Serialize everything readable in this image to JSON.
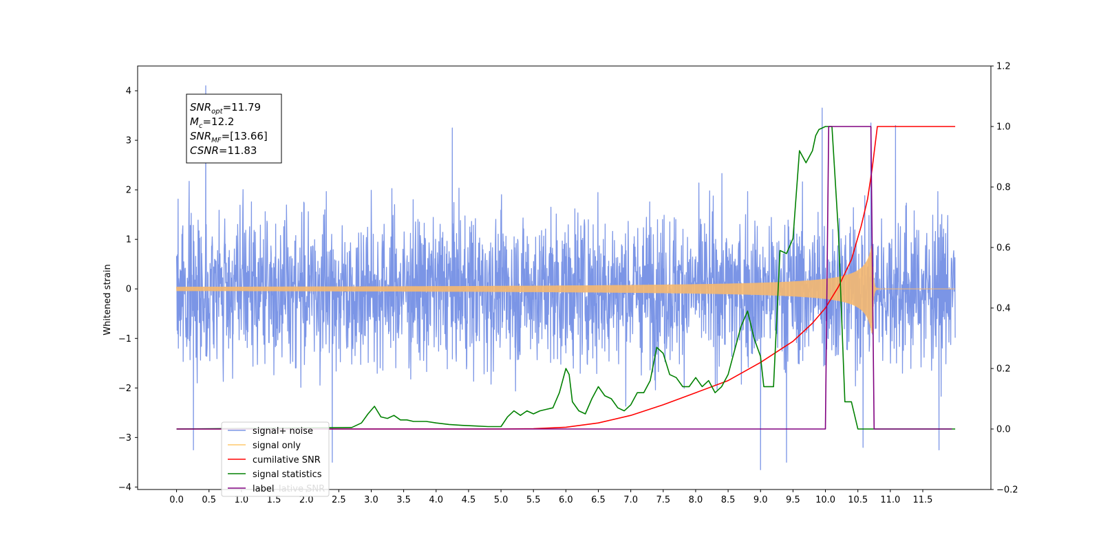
{
  "chart_data": {
    "type": "line",
    "xlabel": "",
    "ylabel": "Whitened strain",
    "xlim": [
      -0.6,
      12.55
    ],
    "ylim": [
      -4.05,
      4.5
    ],
    "y2lim": [
      -0.2,
      1.2
    ],
    "x_ticks": [
      "0.0",
      "0.5",
      "1.0",
      "1.5",
      "2.0",
      "2.5",
      "3.0",
      "3.5",
      "4.0",
      "4.5",
      "5.0",
      "5.5",
      "6.0",
      "6.5",
      "7.0",
      "7.5",
      "8.0",
      "8.5",
      "9.0",
      "9.5",
      "10.0",
      "10.5",
      "11.0",
      "11.5"
    ],
    "y_ticks": [
      "4",
      "3",
      "2",
      "1",
      "0",
      "−1",
      "−2",
      "−3",
      "−4"
    ],
    "y2_ticks": [
      "1.2",
      "1.0",
      "0.8",
      "0.6",
      "0.4",
      "0.2",
      "0.0",
      "−0.2"
    ],
    "annotation": [
      {
        "base": "SNR",
        "sub": "opt",
        "rest": "=11.79"
      },
      {
        "base": "M",
        "sub": "c",
        "rest": "=12.2"
      },
      {
        "base": "SNR",
        "sub": "MF",
        "rest": "=[13.66]"
      },
      {
        "base": "CSNR",
        "sub": "",
        "rest": "=11.83"
      }
    ],
    "legend": {
      "placement": "lower-left",
      "entries": [
        "signal+ noise",
        "signal only",
        "cumilative SNR",
        "signal statistics",
        "label"
      ],
      "overlapped_text": "lative SNR"
    },
    "series": [
      {
        "name": "signal+ noise",
        "axis": "left",
        "color": "#7b95e6",
        "description": "whitened noise around 0, amplitude roughly ±2.3 with spikes up to 4.1 and down to -3.7, x from 0 to 12",
        "tall_spikes": [
          [
            0.45,
            4.1
          ],
          [
            4.25,
            3.25
          ],
          [
            9.95,
            3.65
          ],
          [
            10.7,
            3.35
          ],
          [
            11.08,
            3.3
          ],
          [
            0.26,
            -3.25
          ],
          [
            2.4,
            -3.5
          ],
          [
            9.0,
            -3.65
          ],
          [
            9.4,
            -3.5
          ],
          [
            10.58,
            -3.2
          ],
          [
            11.75,
            -3.25
          ]
        ]
      },
      {
        "name": "signal only",
        "axis": "left",
        "color": "#f5b870",
        "description": "chirp signal growing from 0 amplitude, peaking about ±0.95 near x=10.7 then ending",
        "x_start": 0.0,
        "x_merger": 10.72,
        "x_end": 12.0,
        "peak_amplitude": 0.95
      },
      {
        "name": "cumilative SNR",
        "axis": "right",
        "color": "#ff0000",
        "x": [
          0.0,
          5.0,
          5.5,
          6.0,
          6.5,
          7.0,
          7.5,
          8.0,
          8.5,
          9.0,
          9.5,
          9.8,
          10.0,
          10.2,
          10.4,
          10.55,
          10.65,
          10.72,
          10.8,
          12.0
        ],
        "y": [
          0.0,
          0.0,
          0.001,
          0.006,
          0.02,
          0.045,
          0.08,
          0.12,
          0.16,
          0.22,
          0.29,
          0.35,
          0.4,
          0.47,
          0.56,
          0.67,
          0.76,
          0.86,
          1.0,
          1.0
        ]
      },
      {
        "name": "signal statistics",
        "axis": "right",
        "color": "#008000",
        "x": [
          0.0,
          2.7,
          2.85,
          2.95,
          3.05,
          3.15,
          3.25,
          3.35,
          3.45,
          3.55,
          3.65,
          3.75,
          3.85,
          4.0,
          4.2,
          4.4,
          4.6,
          4.8,
          5.0,
          5.1,
          5.2,
          5.3,
          5.4,
          5.5,
          5.6,
          5.7,
          5.8,
          5.9,
          6.0,
          6.05,
          6.1,
          6.2,
          6.3,
          6.4,
          6.5,
          6.6,
          6.7,
          6.8,
          6.9,
          7.0,
          7.1,
          7.2,
          7.3,
          7.4,
          7.5,
          7.6,
          7.7,
          7.8,
          7.9,
          8.0,
          8.1,
          8.2,
          8.3,
          8.4,
          8.5,
          8.6,
          8.7,
          8.8,
          8.9,
          9.0,
          9.05,
          9.1,
          9.2,
          9.3,
          9.4,
          9.5,
          9.6,
          9.7,
          9.8,
          9.85,
          9.9,
          10.0,
          10.05,
          10.1,
          10.2,
          10.3,
          10.4,
          10.5,
          10.6,
          10.7,
          10.75,
          10.8,
          12.0
        ],
        "y": [
          0.0,
          0.005,
          0.02,
          0.05,
          0.075,
          0.04,
          0.035,
          0.045,
          0.03,
          0.03,
          0.025,
          0.025,
          0.025,
          0.02,
          0.015,
          0.012,
          0.01,
          0.008,
          0.008,
          0.04,
          0.06,
          0.045,
          0.06,
          0.05,
          0.06,
          0.065,
          0.07,
          0.12,
          0.2,
          0.18,
          0.09,
          0.06,
          0.05,
          0.1,
          0.14,
          0.11,
          0.1,
          0.07,
          0.06,
          0.08,
          0.12,
          0.12,
          0.16,
          0.27,
          0.25,
          0.18,
          0.17,
          0.14,
          0.14,
          0.17,
          0.14,
          0.16,
          0.12,
          0.14,
          0.18,
          0.26,
          0.34,
          0.39,
          0.3,
          0.24,
          0.14,
          0.14,
          0.14,
          0.59,
          0.58,
          0.63,
          0.92,
          0.88,
          0.92,
          0.97,
          0.99,
          1.0,
          1.0,
          1.0,
          0.65,
          0.09,
          0.09,
          0.0,
          0.0,
          0.0,
          0.0,
          0.0,
          0.0
        ]
      },
      {
        "name": "label",
        "axis": "right",
        "color": "#800080",
        "x": [
          0.0,
          10.0,
          10.05,
          10.7,
          10.75,
          11.95
        ],
        "y": [
          0.0,
          0.0,
          1.0,
          1.0,
          0.0,
          0.0
        ]
      }
    ]
  }
}
